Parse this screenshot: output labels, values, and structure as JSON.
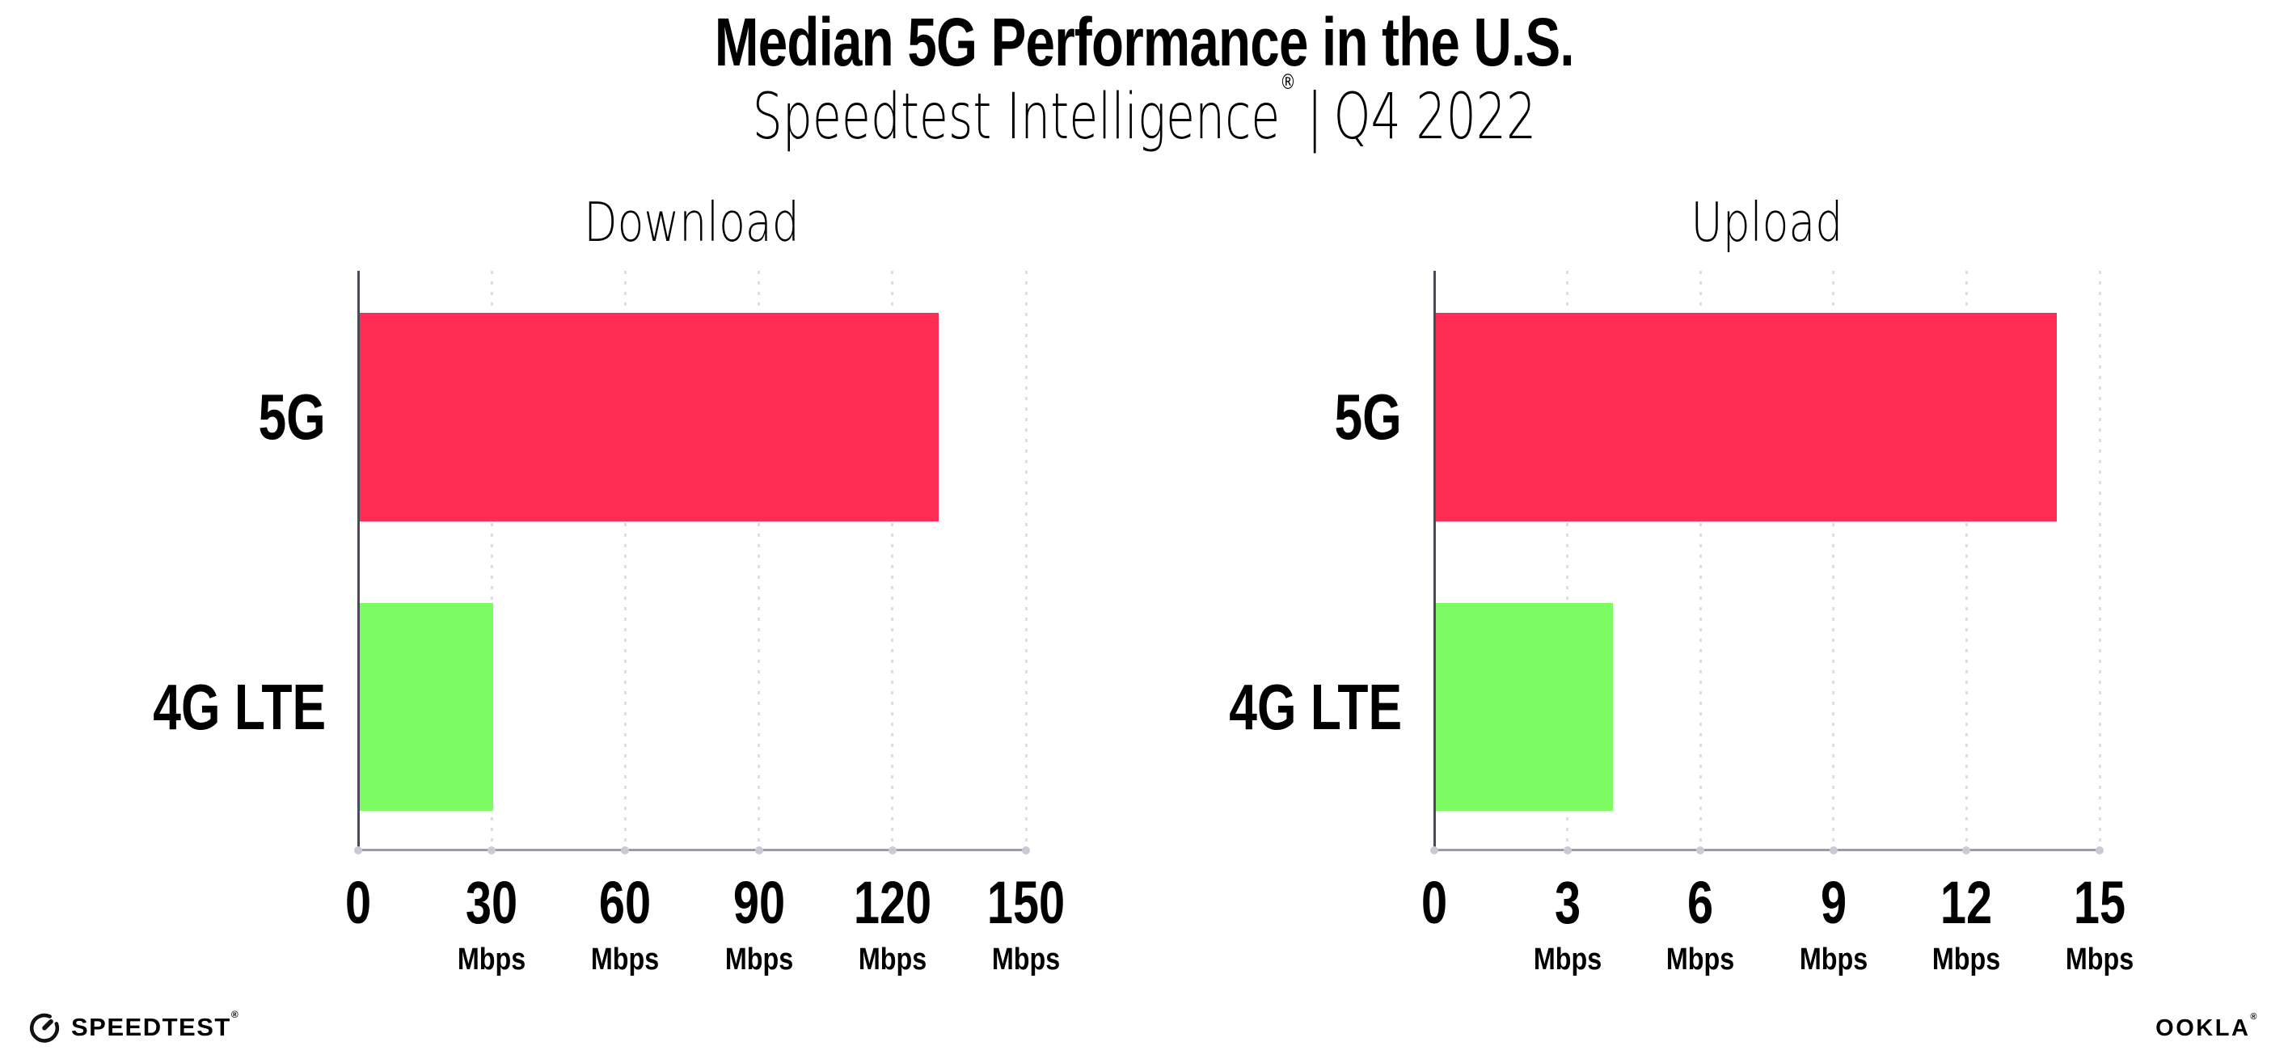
{
  "header": {
    "title": "Median 5G Performance in the U.S.",
    "subtitle_brand": "Speedtest Intelligence",
    "subtitle_reg_mark": "®",
    "subtitle_separator": "|",
    "subtitle_period": "Q4 2022"
  },
  "chart_data": {
    "type": "bar",
    "orientation": "horizontal",
    "categories": [
      "5G",
      "4G LTE"
    ],
    "unit": "Mbps",
    "bar_colors": {
      "5G": "#FF2D55",
      "4G LTE": "#7DFB63"
    },
    "grid": "vertical dotted gridlines at every tick",
    "legend_position": "none",
    "charts": [
      {
        "title": "Download",
        "xlim": [
          0,
          150
        ],
        "xticks": [
          0,
          30,
          60,
          90,
          120,
          150
        ],
        "series": [
          {
            "name": "5G",
            "value_mbps": 130
          },
          {
            "name": "4G LTE",
            "value_mbps": 30
          }
        ]
      },
      {
        "title": "Upload",
        "xlim": [
          0,
          15
        ],
        "xticks": [
          0,
          3,
          6,
          9,
          12,
          15
        ],
        "series": [
          {
            "name": "5G",
            "value_mbps": 14
          },
          {
            "name": "4G LTE",
            "value_mbps": 4
          }
        ]
      }
    ]
  },
  "footer": {
    "speedtest_wordmark": "SPEEDTEST",
    "speedtest_reg_mark": "®",
    "ookla_wordmark": "OOKLA",
    "ookla_reg_mark": "®"
  },
  "colors": {
    "bar_5g": "#FF2D55",
    "bar_4g_lte": "#7DFB63",
    "gridline": "#DCDDE8",
    "x_axis_line": "#9B9BA4",
    "y_axis_spine": "#4A4A55",
    "axis_tick_dot": "#C9CAD6",
    "text": "#000000",
    "background": "#FFFFFF"
  }
}
